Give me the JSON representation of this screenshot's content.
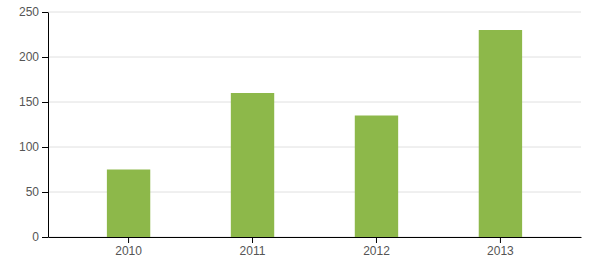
{
  "chart_data": {
    "type": "bar",
    "categories": [
      "2010",
      "2011",
      "2012",
      "2013"
    ],
    "values": [
      75,
      160,
      135,
      230
    ],
    "color": "#8db84a",
    "ylim": [
      0,
      250
    ],
    "yticks": [
      0,
      50,
      100,
      150,
      200,
      250
    ],
    "grid": true
  }
}
